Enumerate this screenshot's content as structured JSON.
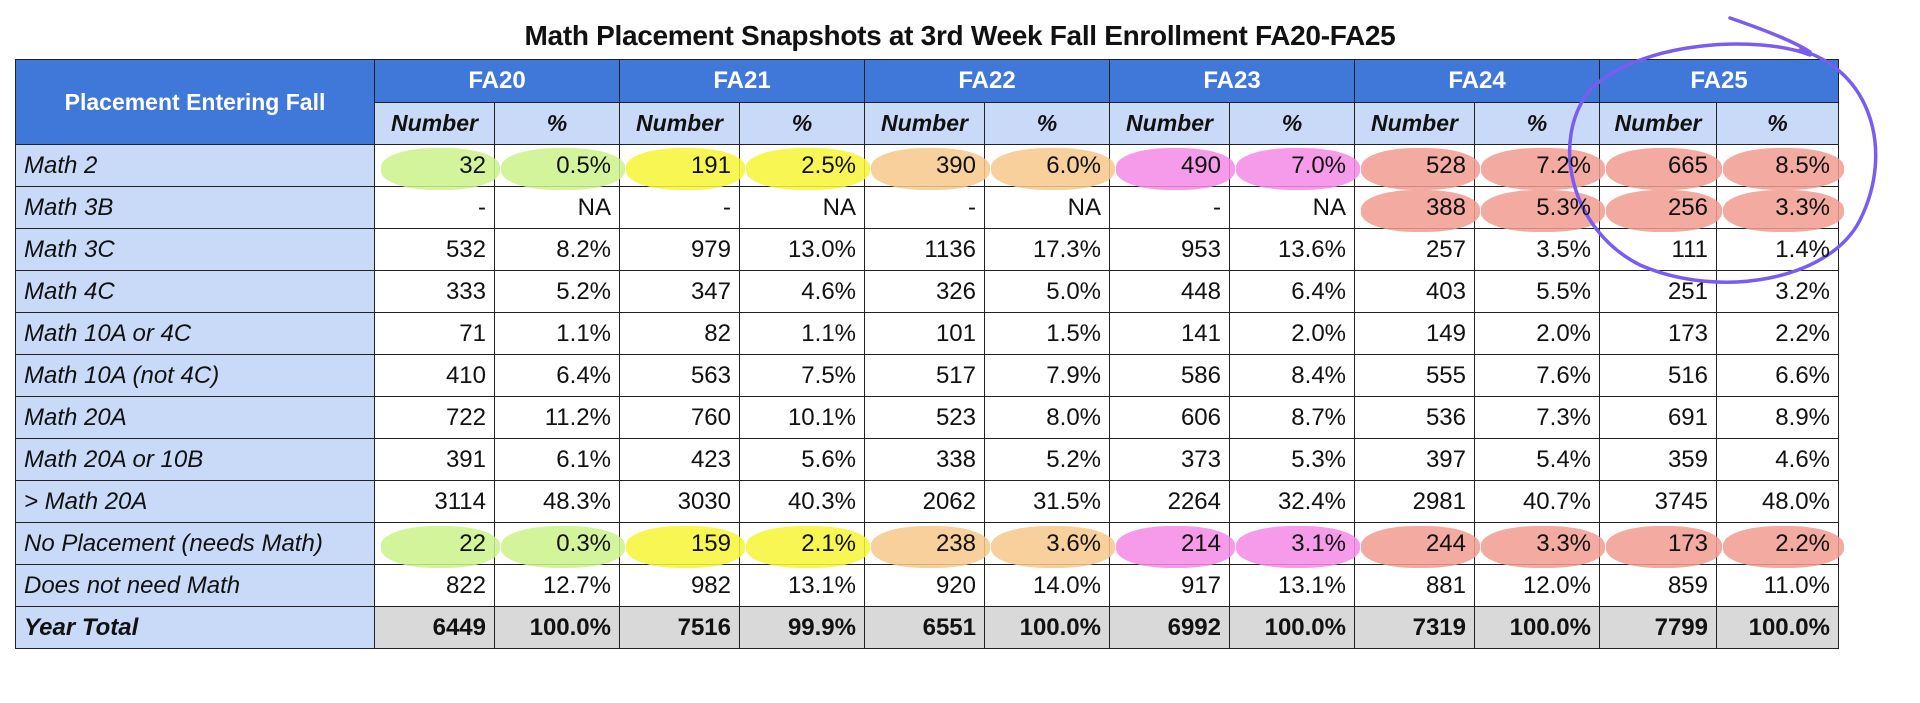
{
  "title": "Math Placement Snapshots at 3rd Week Fall Enrollment FA20-FA25",
  "corner_header": "Placement Entering Fall",
  "sub_headers": {
    "number": "Number",
    "percent": "%"
  },
  "years": [
    {
      "label": "FA20",
      "highlight": "#cdf28a"
    },
    {
      "label": "FA21",
      "highlight": "#f7f535"
    },
    {
      "label": "FA22",
      "highlight": "#f6c88a"
    },
    {
      "label": "FA23",
      "highlight": "#f48ae6"
    },
    {
      "label": "FA24",
      "highlight": "#f09b90"
    },
    {
      "label": "FA25",
      "highlight": "#f09b90"
    }
  ],
  "annotation_color": "#7a5cf0",
  "rows": [
    {
      "label": "Math 2",
      "cells": [
        [
          "32",
          "0.5%"
        ],
        [
          "191",
          "2.5%"
        ],
        [
          "390",
          "6.0%"
        ],
        [
          "490",
          "7.0%"
        ],
        [
          "528",
          "7.2%"
        ],
        [
          "665",
          "8.5%"
        ]
      ],
      "highlighted_years": [
        0,
        1,
        2,
        3,
        4,
        5
      ]
    },
    {
      "label": "Math 3B",
      "cells": [
        [
          "-",
          "NA"
        ],
        [
          "-",
          "NA"
        ],
        [
          "-",
          "NA"
        ],
        [
          "-",
          "NA"
        ],
        [
          "388",
          "5.3%"
        ],
        [
          "256",
          "3.3%"
        ]
      ],
      "highlighted_years": [
        4,
        5
      ]
    },
    {
      "label": "Math 3C",
      "cells": [
        [
          "532",
          "8.2%"
        ],
        [
          "979",
          "13.0%"
        ],
        [
          "1136",
          "17.3%"
        ],
        [
          "953",
          "13.6%"
        ],
        [
          "257",
          "3.5%"
        ],
        [
          "111",
          "1.4%"
        ]
      ],
      "highlighted_years": []
    },
    {
      "label": "Math 4C",
      "cells": [
        [
          "333",
          "5.2%"
        ],
        [
          "347",
          "4.6%"
        ],
        [
          "326",
          "5.0%"
        ],
        [
          "448",
          "6.4%"
        ],
        [
          "403",
          "5.5%"
        ],
        [
          "251",
          "3.2%"
        ]
      ],
      "highlighted_years": []
    },
    {
      "label": "Math 10A or 4C",
      "cells": [
        [
          "71",
          "1.1%"
        ],
        [
          "82",
          "1.1%"
        ],
        [
          "101",
          "1.5%"
        ],
        [
          "141",
          "2.0%"
        ],
        [
          "149",
          "2.0%"
        ],
        [
          "173",
          "2.2%"
        ]
      ],
      "highlighted_years": []
    },
    {
      "label": "Math 10A (not 4C)",
      "cells": [
        [
          "410",
          "6.4%"
        ],
        [
          "563",
          "7.5%"
        ],
        [
          "517",
          "7.9%"
        ],
        [
          "586",
          "8.4%"
        ],
        [
          "555",
          "7.6%"
        ],
        [
          "516",
          "6.6%"
        ]
      ],
      "highlighted_years": []
    },
    {
      "label": "Math 20A",
      "cells": [
        [
          "722",
          "11.2%"
        ],
        [
          "760",
          "10.1%"
        ],
        [
          "523",
          "8.0%"
        ],
        [
          "606",
          "8.7%"
        ],
        [
          "536",
          "7.3%"
        ],
        [
          "691",
          "8.9%"
        ]
      ],
      "highlighted_years": []
    },
    {
      "label": "Math 20A or 10B",
      "cells": [
        [
          "391",
          "6.1%"
        ],
        [
          "423",
          "5.6%"
        ],
        [
          "338",
          "5.2%"
        ],
        [
          "373",
          "5.3%"
        ],
        [
          "397",
          "5.4%"
        ],
        [
          "359",
          "4.6%"
        ]
      ],
      "highlighted_years": []
    },
    {
      "label": "> Math 20A",
      "cells": [
        [
          "3114",
          "48.3%"
        ],
        [
          "3030",
          "40.3%"
        ],
        [
          "2062",
          "31.5%"
        ],
        [
          "2264",
          "32.4%"
        ],
        [
          "2981",
          "40.7%"
        ],
        [
          "3745",
          "48.0%"
        ]
      ],
      "highlighted_years": []
    },
    {
      "label": "No Placement (needs Math)",
      "cells": [
        [
          "22",
          "0.3%"
        ],
        [
          "159",
          "2.1%"
        ],
        [
          "238",
          "3.6%"
        ],
        [
          "214",
          "3.1%"
        ],
        [
          "244",
          "3.3%"
        ],
        [
          "173",
          "2.2%"
        ]
      ],
      "highlighted_years": [
        0,
        1,
        2,
        3,
        4,
        5
      ]
    },
    {
      "label": "Does not need Math",
      "cells": [
        [
          "822",
          "12.7%"
        ],
        [
          "982",
          "13.1%"
        ],
        [
          "920",
          "14.0%"
        ],
        [
          "917",
          "13.1%"
        ],
        [
          "881",
          "12.0%"
        ],
        [
          "859",
          "11.0%"
        ]
      ],
      "highlighted_years": []
    },
    {
      "label": "Year Total",
      "cells": [
        [
          "6449",
          "100.0%"
        ],
        [
          "7516",
          "99.9%"
        ],
        [
          "6551",
          "100.0%"
        ],
        [
          "6992",
          "100.0%"
        ],
        [
          "7319",
          "100.0%"
        ],
        [
          "7799",
          "100.0%"
        ]
      ],
      "highlighted_years": [],
      "total": true
    }
  ]
}
